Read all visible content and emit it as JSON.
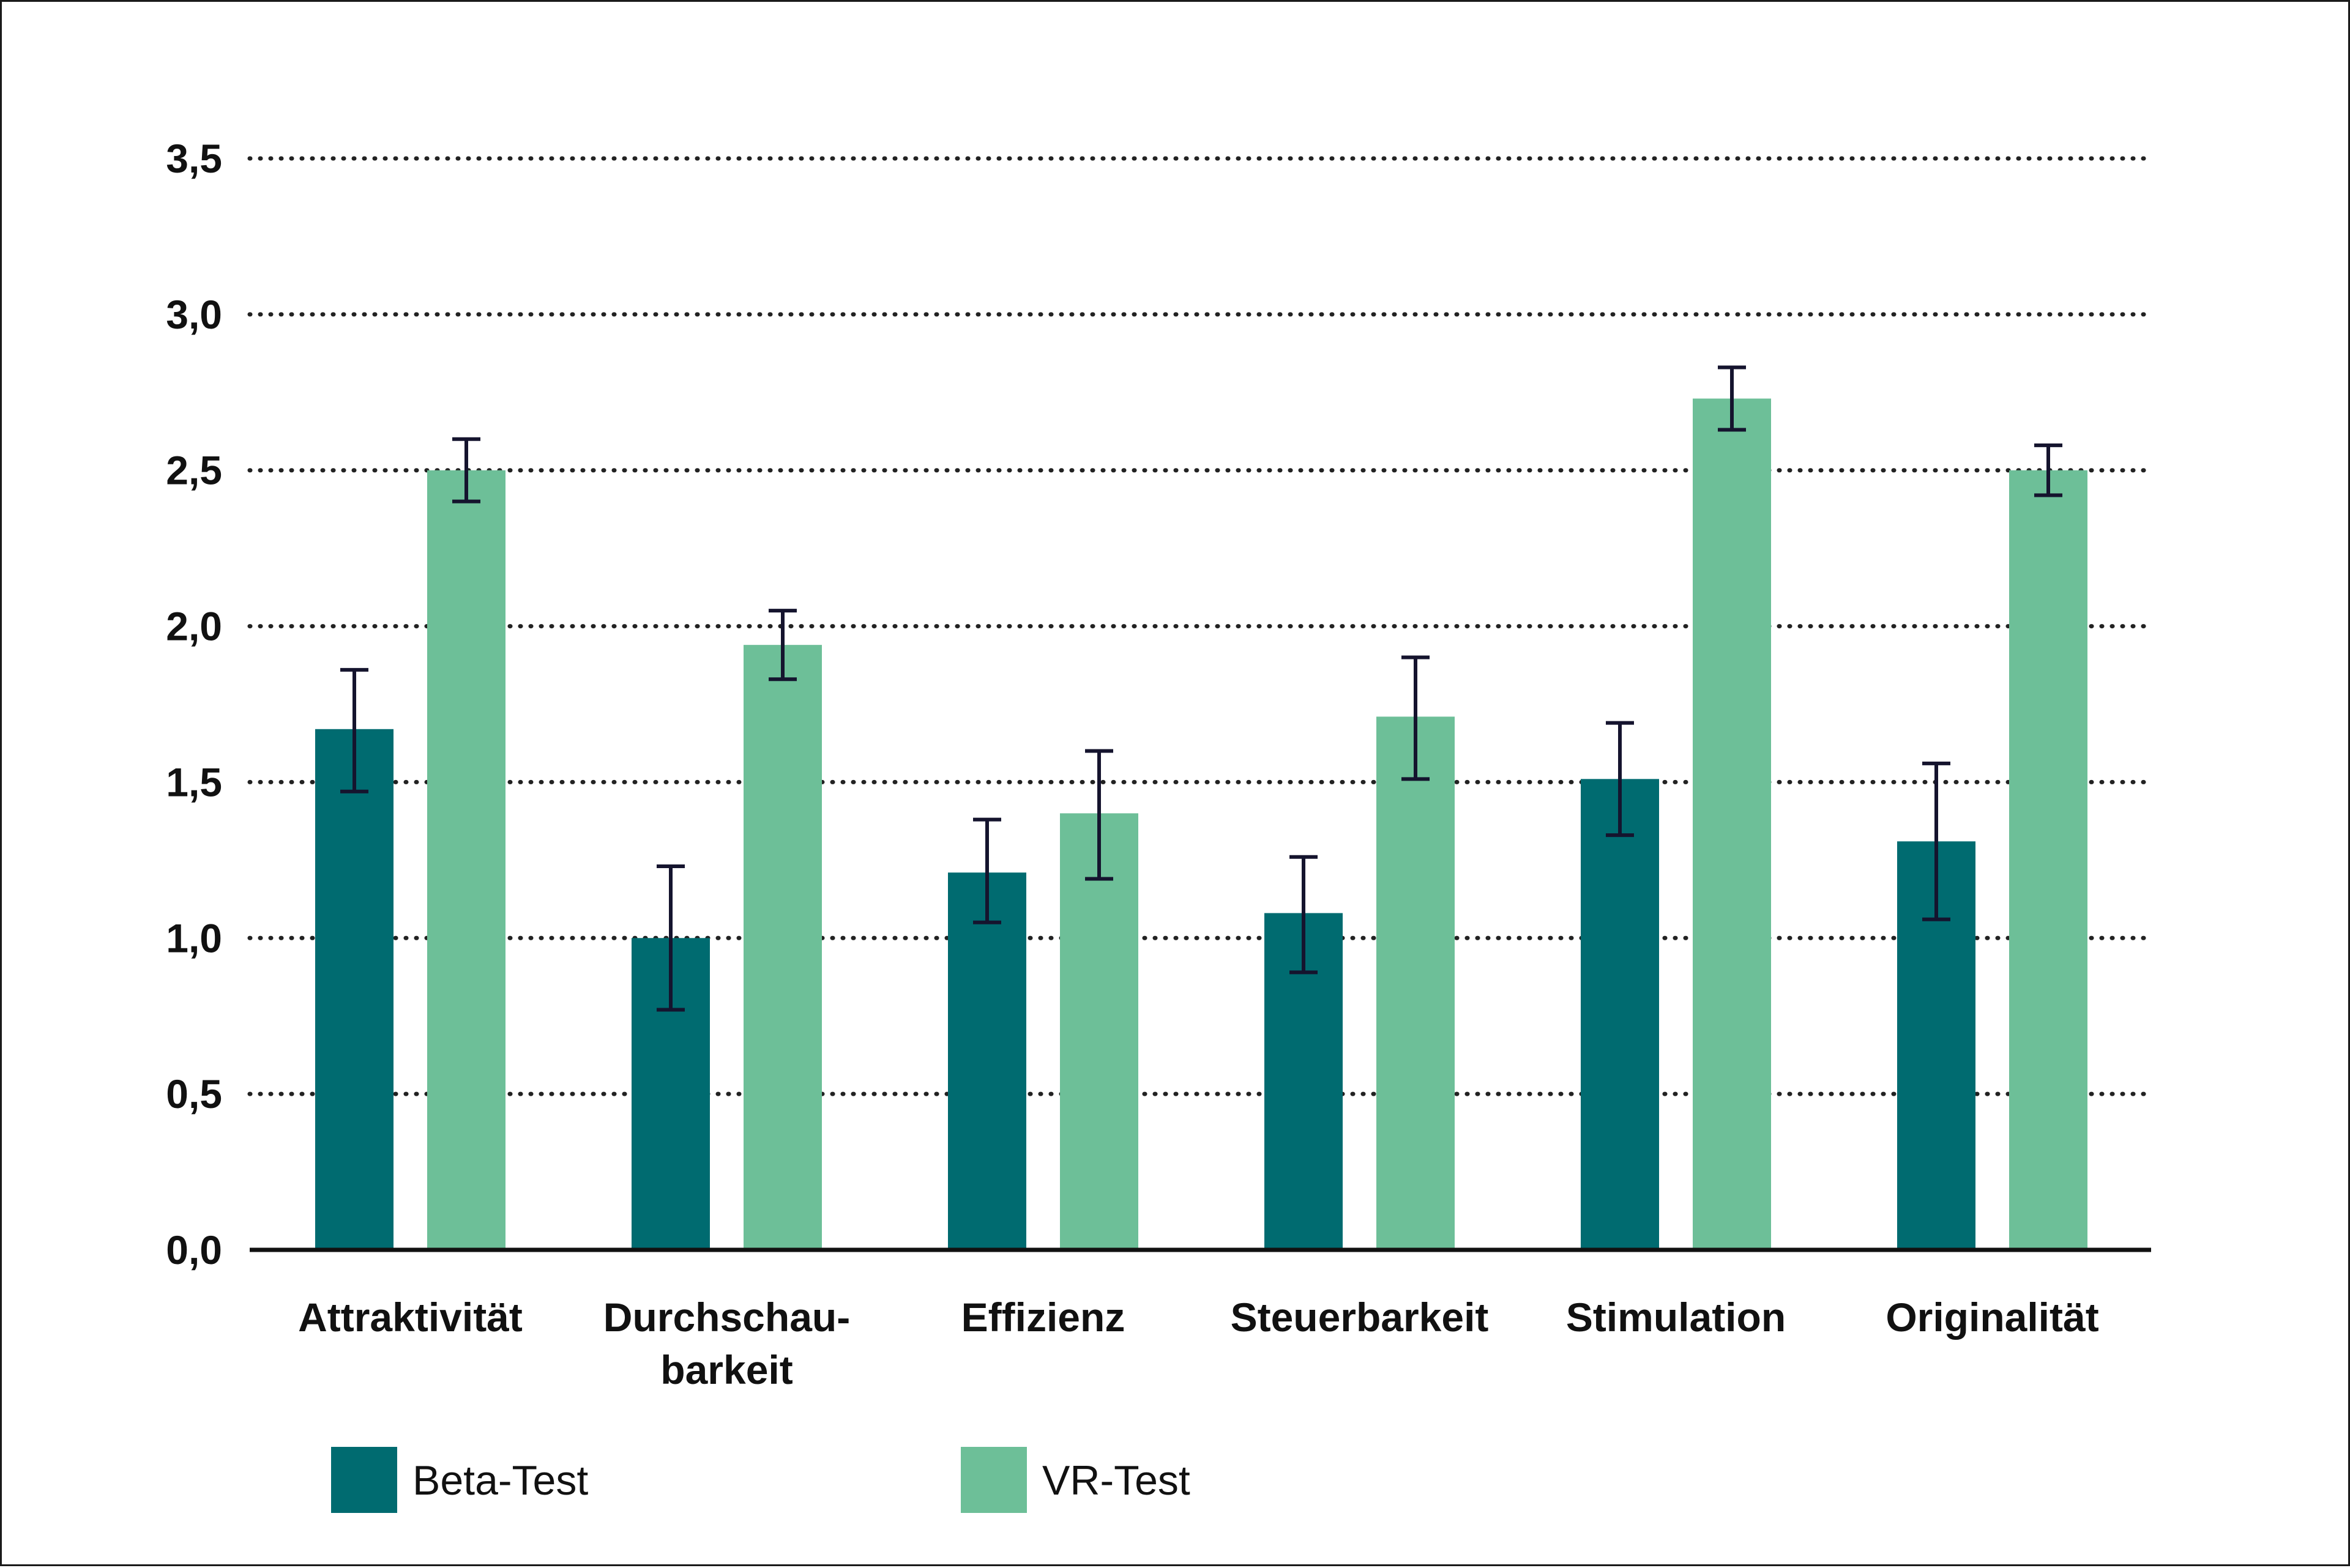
{
  "chart_data": {
    "type": "bar",
    "categories": [
      [
        "Attraktivität"
      ],
      [
        "Durchschau-",
        "barkeit"
      ],
      [
        "Effizienz"
      ],
      [
        "Steuerbarkeit"
      ],
      [
        "Stimulation"
      ],
      [
        "Originalität"
      ]
    ],
    "series": [
      {
        "name": "Beta-Test",
        "color": "#006b70",
        "values": [
          1.67,
          1.0,
          1.21,
          1.08,
          1.51,
          1.31
        ],
        "error_low": [
          1.47,
          0.77,
          1.05,
          0.89,
          1.33,
          1.06
        ],
        "error_high": [
          1.86,
          1.23,
          1.38,
          1.26,
          1.69,
          1.56
        ]
      },
      {
        "name": "VR-Test",
        "color": "#6dbf98",
        "values": [
          2.5,
          1.94,
          1.4,
          1.71,
          2.73,
          2.5
        ],
        "error_low": [
          2.4,
          1.83,
          1.19,
          1.51,
          2.63,
          2.42
        ],
        "error_high": [
          2.6,
          2.05,
          1.6,
          1.9,
          2.83,
          2.58
        ]
      }
    ],
    "y_ticks": [
      "0,0",
      "0,5",
      "1,0",
      "1,5",
      "2,0",
      "2,5",
      "3,0",
      "3,5"
    ],
    "ylim": [
      0,
      3.5
    ],
    "grid": "dotted horizontal",
    "legend": "bottom-left",
    "error_bar_color": "#15142e"
  }
}
